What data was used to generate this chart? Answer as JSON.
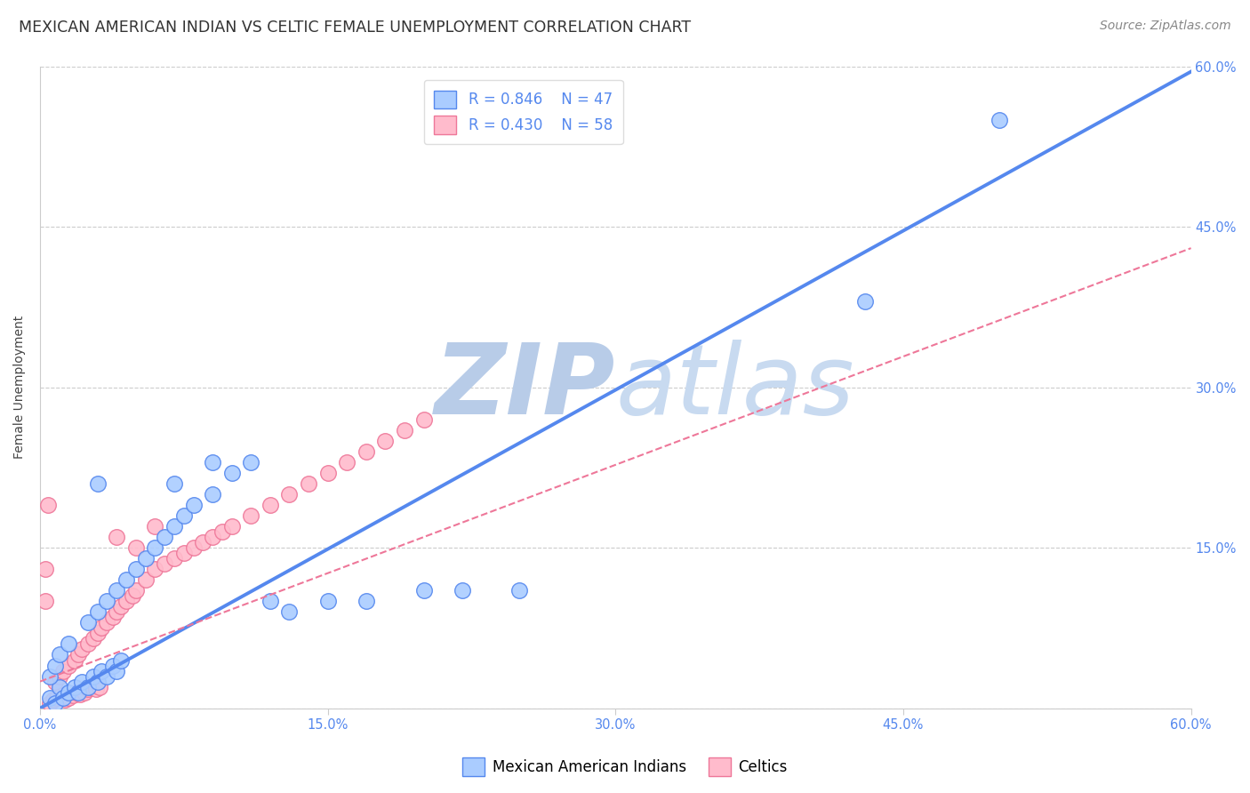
{
  "title": "MEXICAN AMERICAN INDIAN VS CELTIC FEMALE UNEMPLOYMENT CORRELATION CHART",
  "source": "Source: ZipAtlas.com",
  "ylabel": "Female Unemployment",
  "xlim": [
    0,
    0.6
  ],
  "ylim": [
    0,
    0.6
  ],
  "xticks": [
    0.0,
    0.15,
    0.3,
    0.45,
    0.6
  ],
  "yticks": [
    0.0,
    0.15,
    0.3,
    0.45,
    0.6
  ],
  "xticklabels": [
    "0.0%",
    "15.0%",
    "30.0%",
    "45.0%",
    "60.0%"
  ],
  "right_yticklabels": [
    "15.0%",
    "30.0%",
    "45.0%",
    "60.0%"
  ],
  "grid_color": "#cccccc",
  "background_color": "#ffffff",
  "watermark_zip": "ZIP",
  "watermark_atlas": "atlas",
  "watermark_color": "#d0dff5",
  "blue_color": "#5588ee",
  "blue_fill": "#aaccff",
  "pink_color": "#ee7799",
  "pink_fill": "#ffbbcc",
  "legend_R_blue": "R = 0.846",
  "legend_N_blue": "N = 47",
  "legend_R_pink": "R = 0.430",
  "legend_N_pink": "N = 58",
  "blue_scatter": [
    [
      0.005,
      0.01
    ],
    [
      0.008,
      0.005
    ],
    [
      0.01,
      0.02
    ],
    [
      0.012,
      0.01
    ],
    [
      0.015,
      0.015
    ],
    [
      0.018,
      0.02
    ],
    [
      0.02,
      0.015
    ],
    [
      0.022,
      0.025
    ],
    [
      0.025,
      0.02
    ],
    [
      0.028,
      0.03
    ],
    [
      0.03,
      0.025
    ],
    [
      0.032,
      0.035
    ],
    [
      0.035,
      0.03
    ],
    [
      0.038,
      0.04
    ],
    [
      0.04,
      0.035
    ],
    [
      0.042,
      0.045
    ],
    [
      0.005,
      0.03
    ],
    [
      0.008,
      0.04
    ],
    [
      0.01,
      0.05
    ],
    [
      0.015,
      0.06
    ],
    [
      0.025,
      0.08
    ],
    [
      0.03,
      0.09
    ],
    [
      0.035,
      0.1
    ],
    [
      0.04,
      0.11
    ],
    [
      0.045,
      0.12
    ],
    [
      0.05,
      0.13
    ],
    [
      0.055,
      0.14
    ],
    [
      0.06,
      0.15
    ],
    [
      0.065,
      0.16
    ],
    [
      0.07,
      0.17
    ],
    [
      0.075,
      0.18
    ],
    [
      0.08,
      0.19
    ],
    [
      0.09,
      0.2
    ],
    [
      0.1,
      0.22
    ],
    [
      0.11,
      0.23
    ],
    [
      0.12,
      0.1
    ],
    [
      0.13,
      0.09
    ],
    [
      0.15,
      0.1
    ],
    [
      0.17,
      0.1
    ],
    [
      0.2,
      0.11
    ],
    [
      0.22,
      0.11
    ],
    [
      0.25,
      0.11
    ],
    [
      0.03,
      0.21
    ],
    [
      0.07,
      0.21
    ],
    [
      0.09,
      0.23
    ],
    [
      0.43,
      0.38
    ],
    [
      0.5,
      0.55
    ]
  ],
  "pink_scatter": [
    [
      0.005,
      0.005
    ],
    [
      0.007,
      0.008
    ],
    [
      0.009,
      0.01
    ],
    [
      0.011,
      0.012
    ],
    [
      0.013,
      0.008
    ],
    [
      0.015,
      0.01
    ],
    [
      0.017,
      0.012
    ],
    [
      0.019,
      0.015
    ],
    [
      0.021,
      0.013
    ],
    [
      0.023,
      0.015
    ],
    [
      0.025,
      0.018
    ],
    [
      0.027,
      0.02
    ],
    [
      0.029,
      0.018
    ],
    [
      0.031,
      0.02
    ],
    [
      0.008,
      0.025
    ],
    [
      0.01,
      0.03
    ],
    [
      0.012,
      0.035
    ],
    [
      0.015,
      0.04
    ],
    [
      0.018,
      0.045
    ],
    [
      0.02,
      0.05
    ],
    [
      0.022,
      0.055
    ],
    [
      0.025,
      0.06
    ],
    [
      0.028,
      0.065
    ],
    [
      0.03,
      0.07
    ],
    [
      0.032,
      0.075
    ],
    [
      0.035,
      0.08
    ],
    [
      0.038,
      0.085
    ],
    [
      0.04,
      0.09
    ],
    [
      0.042,
      0.095
    ],
    [
      0.045,
      0.1
    ],
    [
      0.048,
      0.105
    ],
    [
      0.05,
      0.11
    ],
    [
      0.055,
      0.12
    ],
    [
      0.004,
      0.19
    ],
    [
      0.06,
      0.13
    ],
    [
      0.065,
      0.135
    ],
    [
      0.07,
      0.14
    ],
    [
      0.075,
      0.145
    ],
    [
      0.08,
      0.15
    ],
    [
      0.085,
      0.155
    ],
    [
      0.09,
      0.16
    ],
    [
      0.095,
      0.165
    ],
    [
      0.1,
      0.17
    ],
    [
      0.11,
      0.18
    ],
    [
      0.12,
      0.19
    ],
    [
      0.13,
      0.2
    ],
    [
      0.14,
      0.21
    ],
    [
      0.15,
      0.22
    ],
    [
      0.16,
      0.23
    ],
    [
      0.17,
      0.24
    ],
    [
      0.18,
      0.25
    ],
    [
      0.19,
      0.26
    ],
    [
      0.2,
      0.27
    ],
    [
      0.04,
      0.16
    ],
    [
      0.06,
      0.17
    ],
    [
      0.003,
      0.13
    ],
    [
      0.003,
      0.1
    ],
    [
      0.05,
      0.15
    ]
  ],
  "blue_line_x": [
    0.0,
    0.6
  ],
  "blue_line_y": [
    0.0,
    0.595
  ],
  "pink_line_x": [
    0.0,
    0.6
  ],
  "pink_line_y": [
    0.025,
    0.43
  ],
  "title_fontsize": 12.5,
  "source_fontsize": 10,
  "label_fontsize": 10,
  "tick_fontsize": 10.5,
  "legend_fontsize": 12,
  "tick_color": "#5588ee"
}
